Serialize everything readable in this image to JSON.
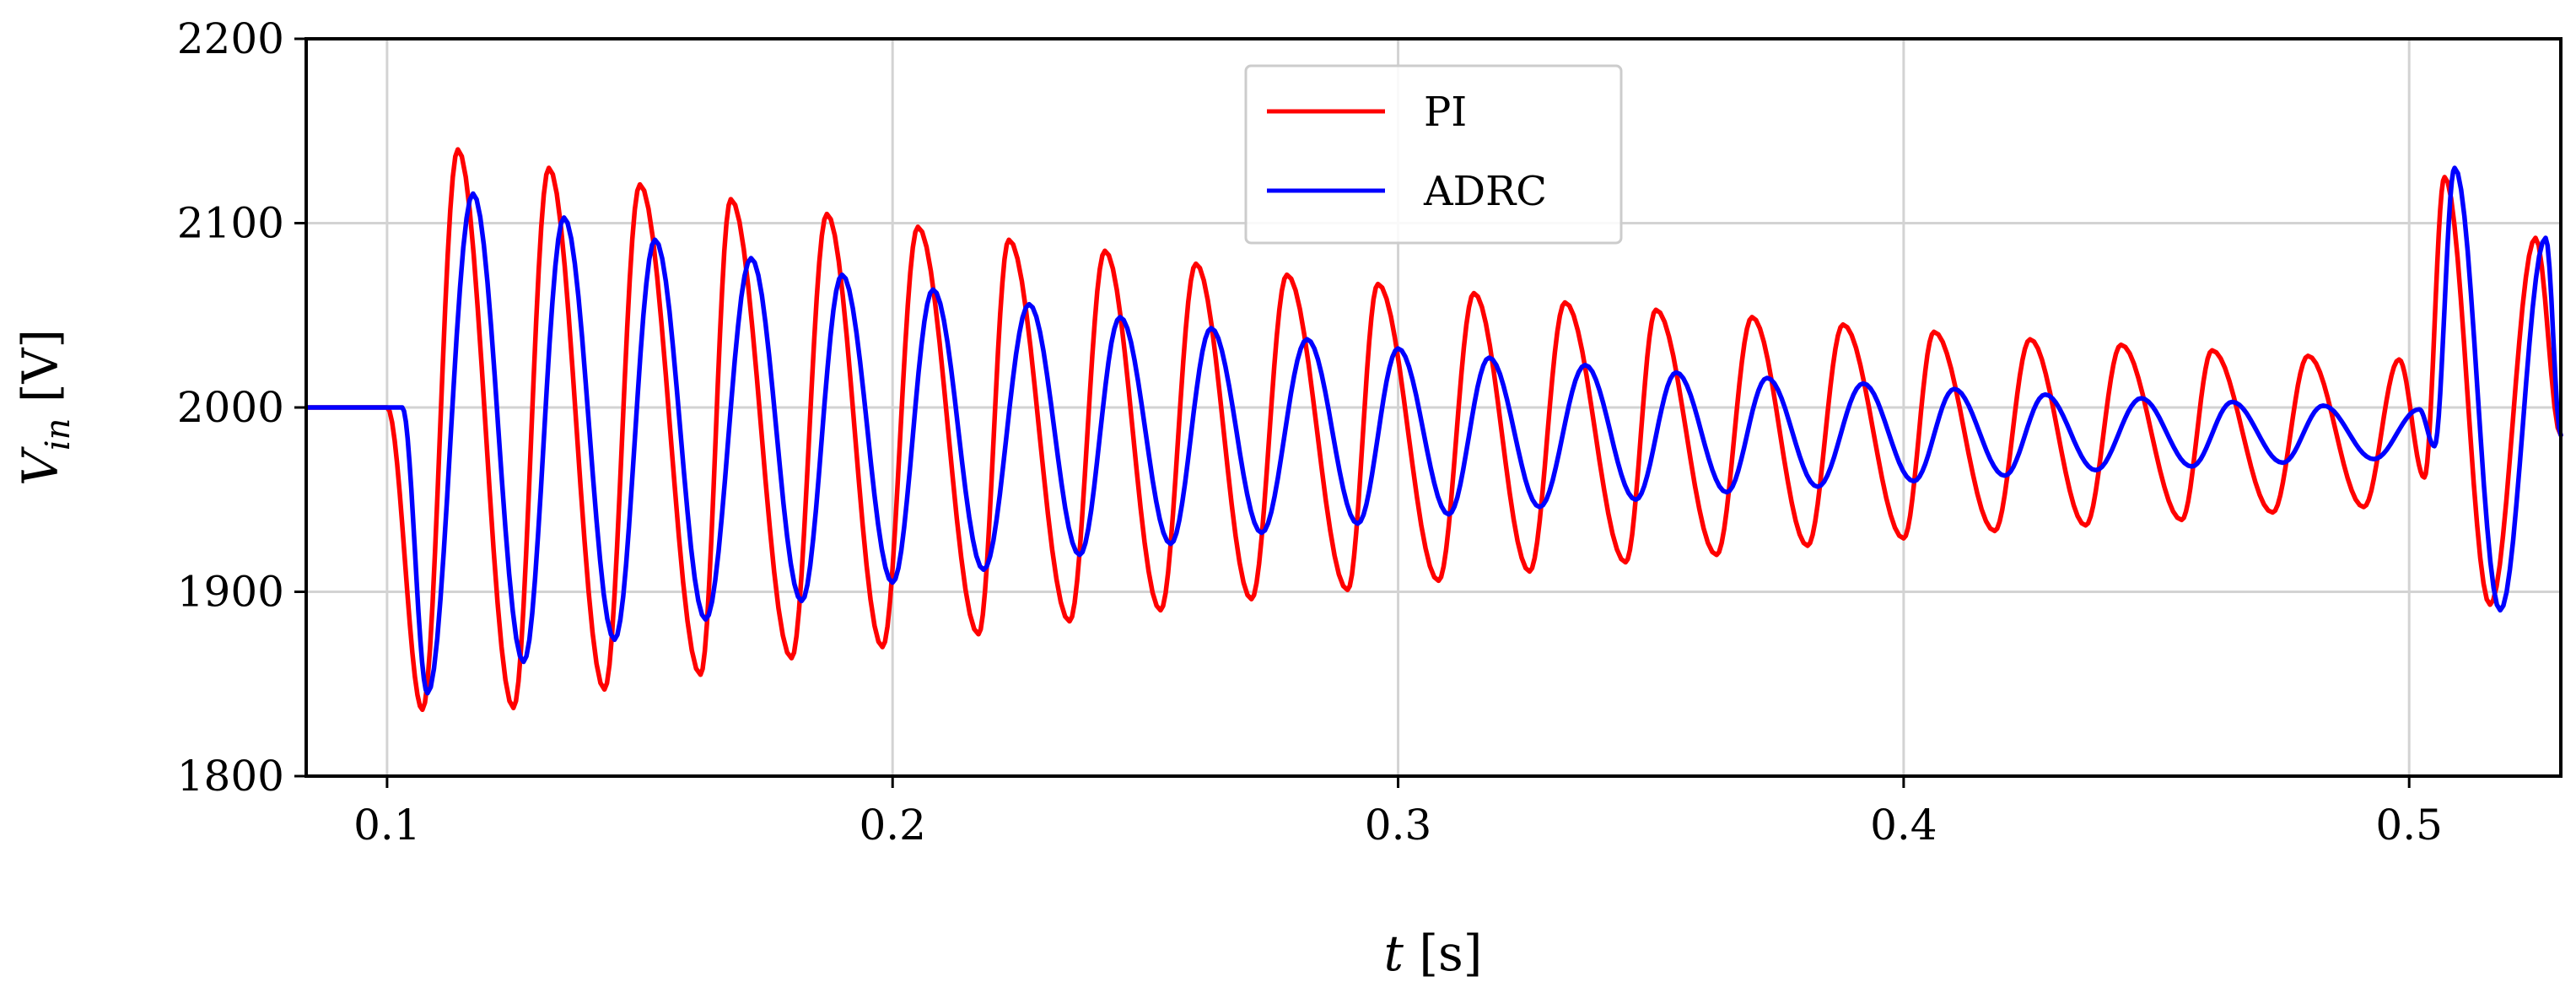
{
  "chart_data": {
    "type": "line",
    "x_axis": {
      "label_var": "t",
      "label_unit": "[s]",
      "range": [
        0.084,
        0.53
      ],
      "ticks": [
        0.1,
        0.2,
        0.3,
        0.4,
        0.5
      ],
      "tick_labels": [
        "0.1",
        "0.2",
        "0.3",
        "0.4",
        "0.5"
      ]
    },
    "y_axis": {
      "label_var": "V",
      "label_sub": "in",
      "label_unit": "[V]",
      "range": [
        1800,
        2200
      ],
      "ticks": [
        1800,
        1900,
        2000,
        2100,
        2200
      ],
      "tick_labels": [
        "1800",
        "1900",
        "2000",
        "2100",
        "2200"
      ]
    },
    "grid": true,
    "legend": {
      "position": "top-center",
      "entries": [
        "PI",
        "ADRC"
      ]
    },
    "series": [
      {
        "name": "PI",
        "color": "#ff0000",
        "step_time": 0.1,
        "pre_value": 2000,
        "period": 0.0184,
        "envelope": [
          [
            0.1,
            165
          ],
          [
            0.2,
            112
          ],
          [
            0.3,
            83
          ],
          [
            0.4,
            56
          ],
          [
            0.5,
            30
          ]
        ],
        "disturbance_time": 0.5,
        "disturbance_envelope": [
          [
            0.5,
            130
          ],
          [
            0.53,
            110
          ]
        ],
        "peaks": [
          [
            0.107,
            1836
          ],
          [
            0.114,
            2140
          ],
          [
            0.125,
            1837
          ],
          [
            0.132,
            2130
          ],
          [
            0.143,
            1847
          ],
          [
            0.15,
            2121
          ],
          [
            0.162,
            1855
          ],
          [
            0.168,
            2113
          ],
          [
            0.18,
            1864
          ],
          [
            0.187,
            2105
          ],
          [
            0.198,
            1870
          ],
          [
            0.205,
            2098
          ],
          [
            0.217,
            1877
          ],
          [
            0.223,
            2091
          ],
          [
            0.235,
            1884
          ],
          [
            0.242,
            2085
          ],
          [
            0.253,
            1890
          ],
          [
            0.26,
            2078
          ],
          [
            0.271,
            1896
          ],
          [
            0.278,
            2072
          ],
          [
            0.29,
            1901
          ],
          [
            0.296,
            2067
          ],
          [
            0.308,
            1906
          ],
          [
            0.315,
            2062
          ],
          [
            0.326,
            1911
          ],
          [
            0.333,
            2057
          ],
          [
            0.345,
            1916
          ],
          [
            0.351,
            2053
          ],
          [
            0.363,
            1920
          ],
          [
            0.37,
            2049
          ],
          [
            0.381,
            1925
          ],
          [
            0.388,
            2045
          ],
          [
            0.4,
            1929
          ],
          [
            0.406,
            2041
          ],
          [
            0.418,
            1933
          ],
          [
            0.425,
            2037
          ],
          [
            0.436,
            1936
          ],
          [
            0.443,
            2034
          ],
          [
            0.455,
            1939
          ],
          [
            0.461,
            2031
          ],
          [
            0.473,
            1943
          ],
          [
            0.48,
            2028
          ],
          [
            0.491,
            1946
          ],
          [
            0.498,
            2026
          ],
          [
            0.503,
            1962
          ],
          [
            0.507,
            2125
          ],
          [
            0.516,
            1893
          ],
          [
            0.525,
            2092
          ]
        ]
      },
      {
        "name": "ADRC",
        "color": "#0000ff",
        "step_time": 0.103,
        "pre_value": 2000,
        "period": 0.0184,
        "envelope": [
          [
            0.103,
            135
          ],
          [
            0.2,
            80
          ],
          [
            0.3,
            47
          ],
          [
            0.4,
            24
          ],
          [
            0.5,
            10
          ]
        ],
        "disturbance_time": 0.503,
        "disturbance_envelope": [
          [
            0.503,
            130
          ],
          [
            0.53,
            110
          ]
        ],
        "peaks": [
          [
            0.108,
            1845
          ],
          [
            0.117,
            2116
          ],
          [
            0.127,
            1862
          ],
          [
            0.135,
            2103
          ],
          [
            0.145,
            1874
          ],
          [
            0.153,
            2091
          ],
          [
            0.163,
            1885
          ],
          [
            0.172,
            2081
          ],
          [
            0.182,
            1895
          ],
          [
            0.19,
            2072
          ],
          [
            0.2,
            1905
          ],
          [
            0.208,
            2064
          ],
          [
            0.218,
            1912
          ],
          [
            0.227,
            2056
          ],
          [
            0.237,
            1920
          ],
          [
            0.245,
            2049
          ],
          [
            0.255,
            1926
          ],
          [
            0.263,
            2043
          ],
          [
            0.273,
            1932
          ],
          [
            0.282,
            2037
          ],
          [
            0.292,
            1937
          ],
          [
            0.3,
            2032
          ],
          [
            0.31,
            1942
          ],
          [
            0.318,
            2027
          ],
          [
            0.328,
            1946
          ],
          [
            0.337,
            2023
          ],
          [
            0.347,
            1950
          ],
          [
            0.355,
            2019
          ],
          [
            0.365,
            1954
          ],
          [
            0.373,
            2016
          ],
          [
            0.383,
            1957
          ],
          [
            0.392,
            2013
          ],
          [
            0.402,
            1960
          ],
          [
            0.41,
            2010
          ],
          [
            0.42,
            1963
          ],
          [
            0.428,
            2007
          ],
          [
            0.438,
            1966
          ],
          [
            0.447,
            2005
          ],
          [
            0.457,
            1968
          ],
          [
            0.465,
            2003
          ],
          [
            0.475,
            1970
          ],
          [
            0.483,
            2001
          ],
          [
            0.493,
            1972
          ],
          [
            0.502,
            1999
          ],
          [
            0.505,
            1979
          ],
          [
            0.509,
            2130
          ],
          [
            0.518,
            1890
          ],
          [
            0.527,
            2092
          ]
        ]
      }
    ]
  }
}
